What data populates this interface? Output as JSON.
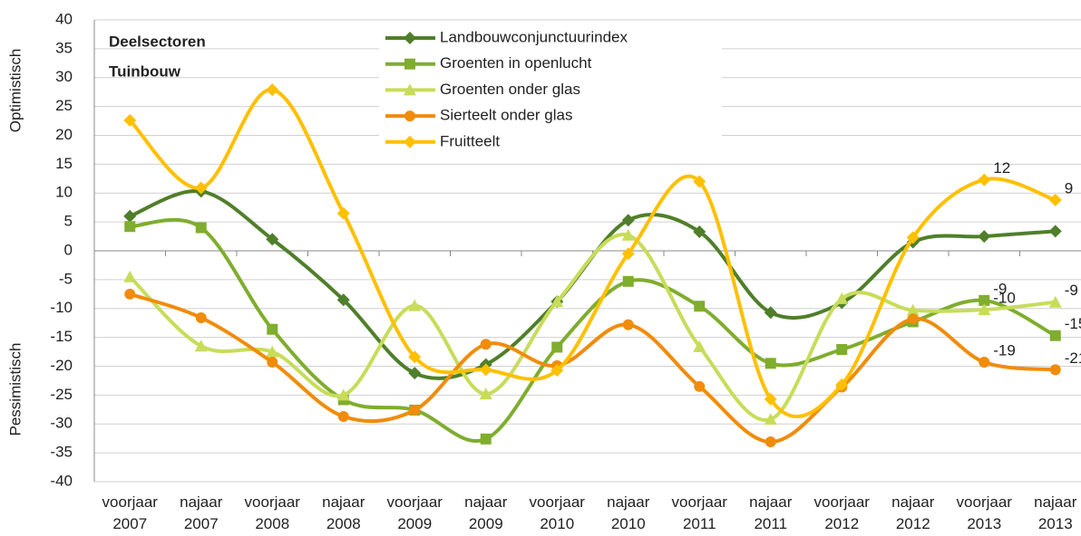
{
  "chart_data": {
    "type": "line",
    "ylabel_top": "Optimistisch",
    "ylabel_bottom": "Pessimistisch",
    "annotation": [
      "Deelsectoren",
      "Tuinbouw"
    ],
    "categories": [
      "voorjaar 2007",
      "najaar 2007",
      "voorjaar 2008",
      "najaar 2008",
      "voorjaar 2009",
      "najaar 2009",
      "voorjaar 2010",
      "najaar 2010",
      "voorjaar 2011",
      "najaar 2011",
      "voorjaar 2012",
      "najaar 2012",
      "voorjaar 2013",
      "najaar 2013"
    ],
    "ylim": [
      -40,
      40
    ],
    "yticks": [
      -40,
      -35,
      -30,
      -25,
      -20,
      -15,
      -10,
      -5,
      0,
      5,
      10,
      15,
      20,
      25,
      30,
      35,
      40
    ],
    "grid": true,
    "legend": "top",
    "series": [
      {
        "name": "Landbouwconjunctuurindex",
        "color": "#4f7f2a",
        "marker": "diamond",
        "values": [
          6,
          10.3,
          2,
          -8.5,
          -21.2,
          -19.7,
          -8.8,
          5.3,
          3.3,
          -10.7,
          -9,
          1.5,
          2.5,
          3.4
        ]
      },
      {
        "name": "Groenten in openlucht",
        "color": "#7fad2e",
        "marker": "square",
        "values": [
          4.2,
          4,
          -13.6,
          -25.8,
          -27.6,
          -32.6,
          -16.7,
          -5.3,
          -9.6,
          -19.5,
          -17.1,
          -12.3,
          -8.6,
          -14.7
        ],
        "value_labels": [
          null,
          null,
          null,
          null,
          null,
          null,
          null,
          null,
          null,
          null,
          null,
          null,
          "-9",
          "-15"
        ]
      },
      {
        "name": "Groenten onder glas",
        "color": "#c8dc5a",
        "marker": "triangle",
        "values": [
          -4.5,
          -16.5,
          -17.5,
          -25,
          -9.5,
          -24.8,
          -8.8,
          2.7,
          -16.6,
          -29.2,
          -8.3,
          -10.3,
          -10.2,
          -8.9
        ],
        "value_labels": [
          null,
          null,
          null,
          null,
          null,
          null,
          null,
          null,
          null,
          null,
          null,
          null,
          "-10",
          "-9"
        ]
      },
      {
        "name": "Sierteelt onder glas",
        "color": "#f08c0a",
        "marker": "circle",
        "values": [
          -7.5,
          -11.6,
          -19.3,
          -28.7,
          -27.6,
          -16.2,
          -19.9,
          -12.8,
          -23.5,
          -33.1,
          -23.6,
          -11.8,
          -19.3,
          -20.6
        ],
        "value_labels": [
          null,
          null,
          null,
          null,
          null,
          null,
          null,
          null,
          null,
          null,
          null,
          null,
          "-19",
          "-21"
        ]
      },
      {
        "name": "Fruitteelt",
        "color": "#ffc000",
        "marker": "diamond",
        "values": [
          22.6,
          10.9,
          27.9,
          6.5,
          -18.4,
          -20.6,
          -20.7,
          -0.5,
          12,
          -25.7,
          -23.2,
          2.3,
          12.3,
          8.8
        ],
        "value_labels": [
          null,
          null,
          null,
          null,
          null,
          null,
          null,
          null,
          null,
          null,
          null,
          null,
          "12",
          "9"
        ]
      }
    ]
  }
}
